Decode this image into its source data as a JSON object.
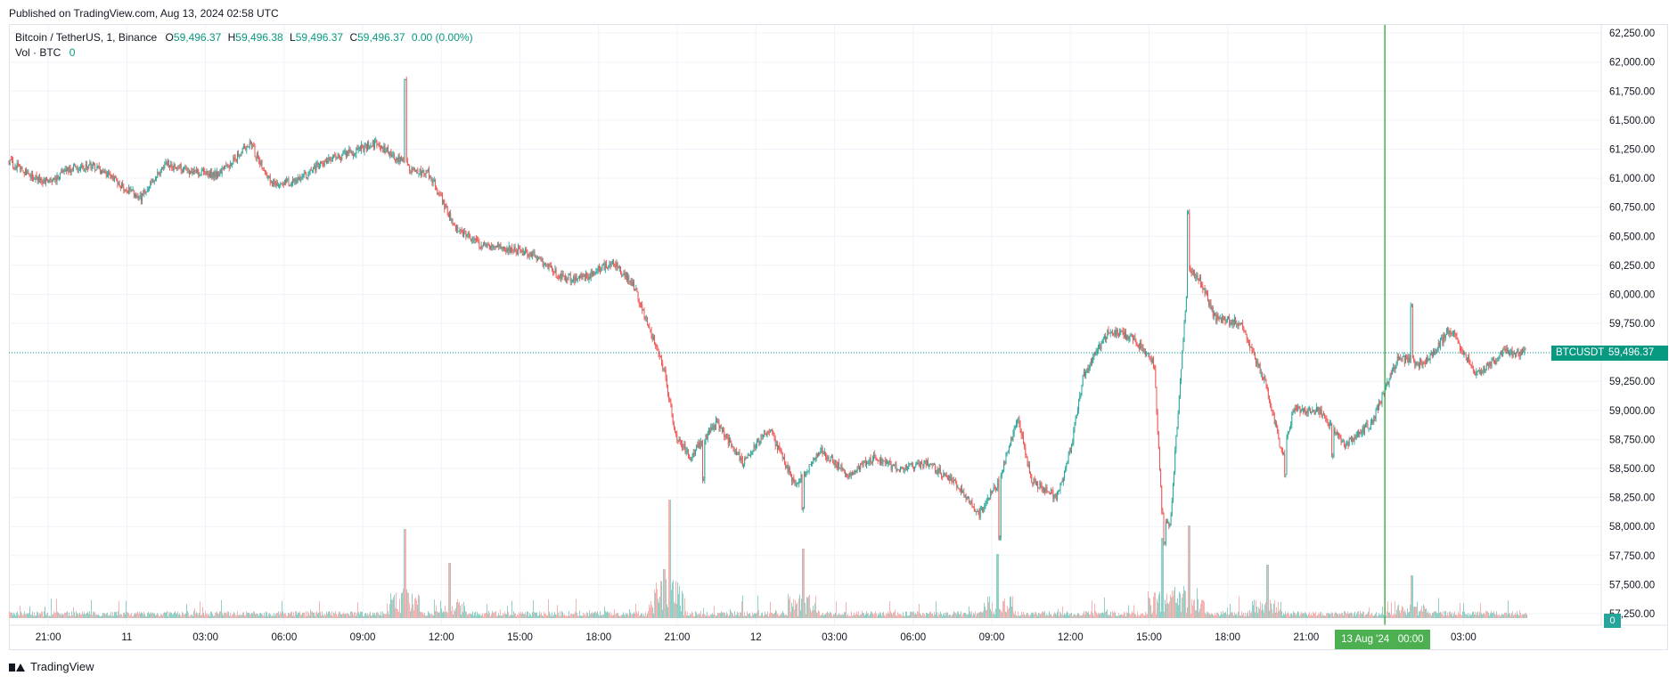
{
  "header": {
    "published": "Published on TradingView.com, Aug 13, 2024 02:58 UTC"
  },
  "legend": {
    "symbol": "Bitcoin / TetherUS, 1, Binance",
    "o_label": "O",
    "o_value": "59,496.37",
    "h_label": "H",
    "h_value": "59,496.38",
    "l_label": "L",
    "l_value": "59,496.37",
    "c_label": "C",
    "c_value": "59,496.37",
    "change": "0.00 (0.00%)",
    "vol_label": "Vol · BTC",
    "vol_value": "0"
  },
  "footer": {
    "brand": "TradingView"
  },
  "colors": {
    "up": "#26a69a",
    "down": "#ef5350",
    "up_vol": "#8fd0c7",
    "down_vol": "#f7b3b1",
    "crosshair": "#4caf50",
    "last_price": "#089981",
    "grid": "#f0f3fa"
  },
  "chart_data": {
    "type": "candlestick",
    "title": "Bitcoin / TetherUS, 1, Binance",
    "symbol_tag": "BTCUSDT",
    "last_price": 59496.37,
    "last_price_label": "59,496.37",
    "crosshair_time_label": "13 Aug '24   00:00",
    "volume_label": "0",
    "ylim": [
      57150,
      62320
    ],
    "y_ticks": [
      62250,
      62000,
      61750,
      61500,
      61250,
      61000,
      60750,
      60500,
      60250,
      60000,
      59750,
      59500,
      59250,
      59000,
      58750,
      58500,
      58250,
      58000,
      57750,
      57500,
      57250
    ],
    "y_tick_labels": [
      "62,250.00",
      "62,000.00",
      "61,750.00",
      "61,500.00",
      "61,250.00",
      "61,000.00",
      "60,750.00",
      "60,500.00",
      "60,250.00",
      "60,000.00",
      "59,750.00",
      "59,500.00",
      "59,250.00",
      "59,000.00",
      "58,750.00",
      "58,500.00",
      "58,250.00",
      "58,000.00",
      "57,750.00",
      "57,500.00",
      "57,250.00"
    ],
    "x_ticks": [
      {
        "t": 1.5,
        "label": "21:00"
      },
      {
        "t": 4.5,
        "label": "11"
      },
      {
        "t": 7.5,
        "label": "03:00"
      },
      {
        "t": 10.5,
        "label": "06:00"
      },
      {
        "t": 13.5,
        "label": "09:00"
      },
      {
        "t": 16.5,
        "label": "12:00"
      },
      {
        "t": 19.5,
        "label": "15:00"
      },
      {
        "t": 22.5,
        "label": "18:00"
      },
      {
        "t": 25.5,
        "label": "21:00"
      },
      {
        "t": 28.5,
        "label": "12"
      },
      {
        "t": 31.5,
        "label": "03:00"
      },
      {
        "t": 34.5,
        "label": "06:00"
      },
      {
        "t": 37.5,
        "label": "09:00"
      },
      {
        "t": 40.5,
        "label": "12:00"
      },
      {
        "t": 43.5,
        "label": "15:00"
      },
      {
        "t": 46.5,
        "label": "18:00"
      },
      {
        "t": 49.5,
        "label": "21:00"
      },
      {
        "t": 55.5,
        "label": "03:00"
      }
    ],
    "crosshair_t": 52.5,
    "time_range_hours": [
      0,
      57.9
    ],
    "price_path": [
      [
        0.0,
        61150
      ],
      [
        0.8,
        61020
      ],
      [
        1.5,
        60970
      ],
      [
        2.2,
        61060
      ],
      [
        3.2,
        61110
      ],
      [
        4.0,
        60990
      ],
      [
        5.0,
        60820
      ],
      [
        6.0,
        61120
      ],
      [
        7.0,
        61060
      ],
      [
        8.0,
        61030
      ],
      [
        9.2,
        61300
      ],
      [
        10.0,
        60960
      ],
      [
        11.0,
        60970
      ],
      [
        12.0,
        61140
      ],
      [
        13.0,
        61220
      ],
      [
        14.0,
        61300
      ],
      [
        15.0,
        61140
      ],
      [
        15.5,
        61050
      ],
      [
        16.0,
        61060
      ],
      [
        17.0,
        60580
      ],
      [
        18.0,
        60420
      ],
      [
        19.0,
        60400
      ],
      [
        20.0,
        60350
      ],
      [
        21.0,
        60150
      ],
      [
        22.0,
        60140
      ],
      [
        23.0,
        60280
      ],
      [
        23.8,
        60100
      ],
      [
        25.0,
        59350
      ],
      [
        25.4,
        58800
      ],
      [
        26.0,
        58600
      ],
      [
        27.0,
        58900
      ],
      [
        28.0,
        58550
      ],
      [
        29.0,
        58850
      ],
      [
        30.0,
        58350
      ],
      [
        31.0,
        58650
      ],
      [
        32.0,
        58450
      ],
      [
        33.0,
        58600
      ],
      [
        34.0,
        58480
      ],
      [
        35.0,
        58550
      ],
      [
        36.0,
        58400
      ],
      [
        37.0,
        58100
      ],
      [
        37.8,
        58400
      ],
      [
        38.5,
        58950
      ],
      [
        39.0,
        58400
      ],
      [
        40.0,
        58250
      ],
      [
        40.5,
        58650
      ],
      [
        41.0,
        59300
      ],
      [
        42.0,
        59700
      ],
      [
        43.0,
        59600
      ],
      [
        43.7,
        59400
      ],
      [
        44.0,
        58100
      ],
      [
        44.3,
        58000
      ],
      [
        45.0,
        60250
      ],
      [
        45.5,
        60100
      ],
      [
        46.0,
        59800
      ],
      [
        47.0,
        59750
      ],
      [
        48.0,
        59200
      ],
      [
        48.6,
        58600
      ],
      [
        49.0,
        59000
      ],
      [
        50.0,
        59000
      ],
      [
        51.0,
        58700
      ],
      [
        52.0,
        58900
      ],
      [
        53.0,
        59450
      ],
      [
        54.0,
        59400
      ],
      [
        55.0,
        59700
      ],
      [
        56.0,
        59300
      ],
      [
        57.0,
        59500
      ],
      [
        57.9,
        59496
      ]
    ],
    "extremes": [
      {
        "t": 15.1,
        "price": 61850
      },
      {
        "t": 26.5,
        "price": 58400
      },
      {
        "t": 30.3,
        "price": 58150
      },
      {
        "t": 37.8,
        "price": 57900
      },
      {
        "t": 44.1,
        "price": 57850
      },
      {
        "t": 45.0,
        "price": 60700
      },
      {
        "t": 48.7,
        "price": 58450
      },
      {
        "t": 50.5,
        "price": 58600
      },
      {
        "t": 53.5,
        "price": 59900
      }
    ],
    "volume_spikes": [
      {
        "t": 15.1,
        "v": 100
      },
      {
        "t": 16.8,
        "v": 62
      },
      {
        "t": 25.0,
        "v": 55
      },
      {
        "t": 25.2,
        "v": 133
      },
      {
        "t": 30.3,
        "v": 78
      },
      {
        "t": 37.7,
        "v": 72
      },
      {
        "t": 44.0,
        "v": 90
      },
      {
        "t": 45.0,
        "v": 104
      },
      {
        "t": 48.0,
        "v": 60
      },
      {
        "t": 53.5,
        "v": 48
      }
    ]
  }
}
